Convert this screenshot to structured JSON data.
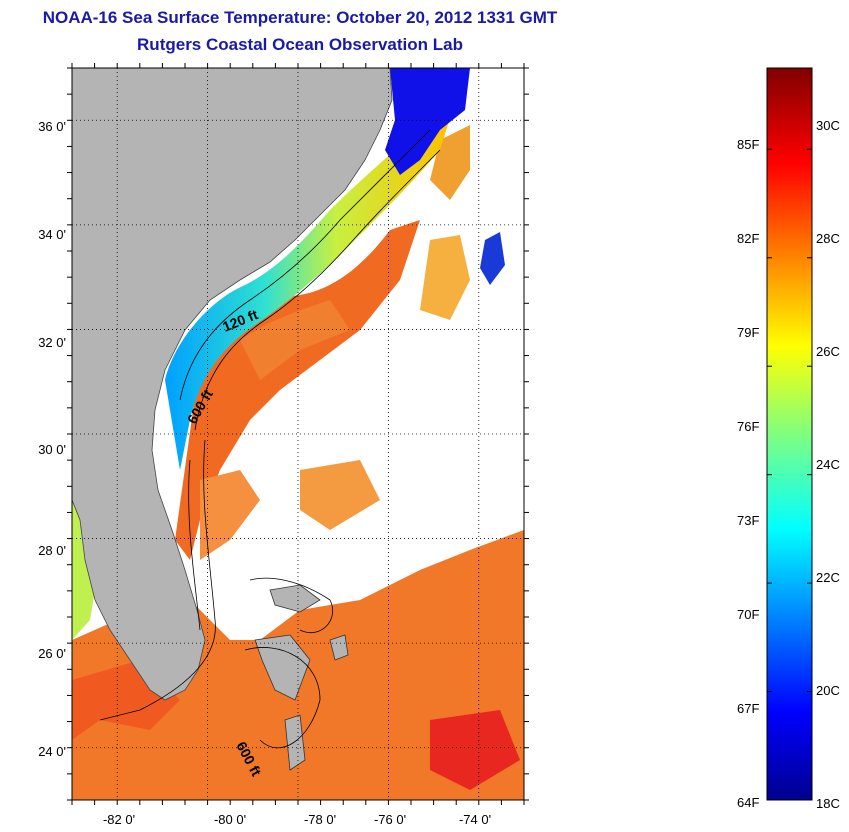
{
  "title": "NOAA-16 Sea Surface Temperature:  October 20, 2012 1331 GMT",
  "subtitle": "Rutgers Coastal Ocean Observation Lab",
  "map": {
    "lon_range": [
      -83,
      -73
    ],
    "lat_range": [
      23,
      37
    ],
    "lat_ticks": [
      {
        "value": 36,
        "label": "36 0'"
      },
      {
        "value": 34,
        "label": "34 0'"
      },
      {
        "value": 32,
        "label": "32 0'"
      },
      {
        "value": 30,
        "label": "30 0'"
      },
      {
        "value": 28,
        "label": "28 0'"
      },
      {
        "value": 26,
        "label": "26 0'"
      },
      {
        "value": 24,
        "label": "24 0'"
      }
    ],
    "lon_ticks": [
      {
        "value": -82,
        "label": "-82 0'"
      },
      {
        "value": -80,
        "label": "-80 0'"
      },
      {
        "value": -78,
        "label": "-78 0'"
      },
      {
        "value": -76,
        "label": "-76 0'"
      },
      {
        "value": -74,
        "label": "-74 0'"
      }
    ],
    "contour_labels": [
      "120 ft",
      "600 ft",
      "600 ft"
    ],
    "colors": {
      "land": "#b4b4b4",
      "cloud": "#ffffff",
      "grid": "#000000"
    }
  },
  "colorbar": {
    "min_c": 18,
    "max_c": 31.5,
    "left_labels": [
      "85F",
      "82F",
      "79F",
      "76F",
      "73F",
      "70F",
      "67F",
      "64F"
    ],
    "right_labels": [
      "30C",
      "28C",
      "26C",
      "24C",
      "22C",
      "20C",
      "18C"
    ]
  }
}
